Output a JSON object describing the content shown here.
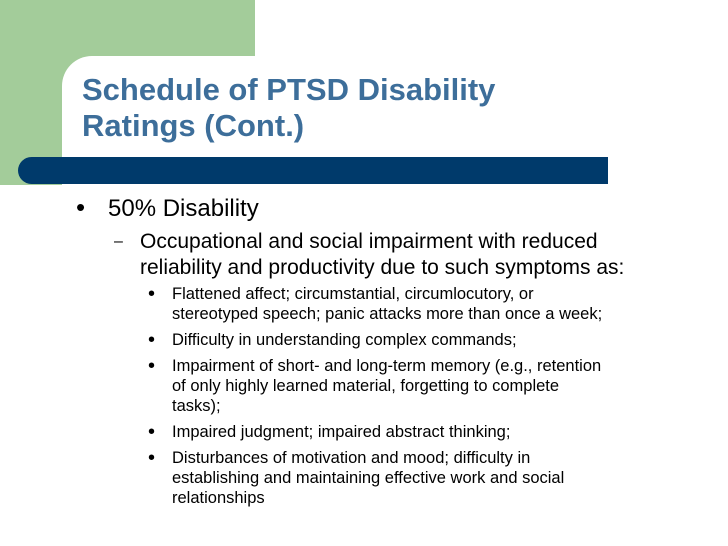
{
  "slide": {
    "title": "Schedule of PTSD Disability\nRatings (Cont.)",
    "colors": {
      "accent_green": "#a3cc9a",
      "title_blue": "#3d6e9a",
      "bar_navy": "#003a6b"
    },
    "level1": {
      "bullet_icon": "filled-circle",
      "text": "50% Disability"
    },
    "level2": {
      "bullet_icon": "dash",
      "text": "Occupational and social impairment with reduced\nreliability and productivity due to such symptoms as:"
    },
    "level3": [
      {
        "text": "Flattened affect; circumstantial, circumlocutory, or\nstereotyped speech; panic attacks more than once a week;"
      },
      {
        "text": "Difficulty in understanding complex commands;"
      },
      {
        "text": "Impairment of short- and long-term memory (e.g., retention\nof only highly learned material, forgetting to complete\ntasks);"
      },
      {
        "text": "Impaired judgment; impaired abstract thinking;"
      },
      {
        "text": "Disturbances of motivation and mood; difficulty in\nestablishing and maintaining effective work and social\nrelationships"
      }
    ]
  }
}
